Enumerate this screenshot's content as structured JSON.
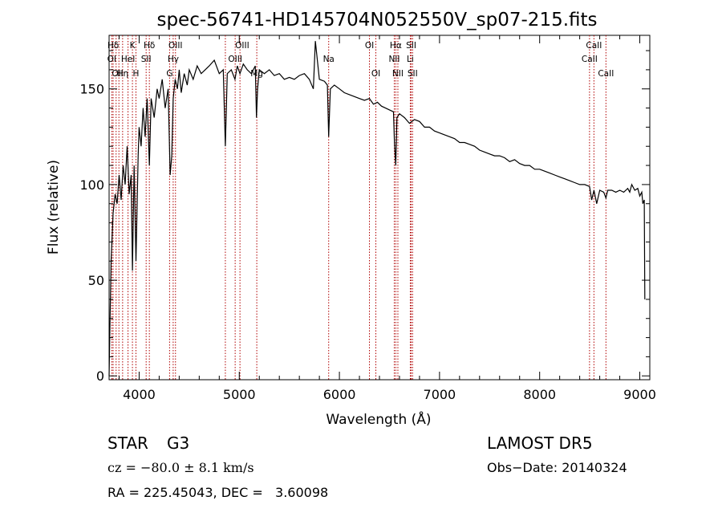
{
  "chart_data": {
    "type": "line",
    "title": "spec-56741-HD145704N052550V_sp07-215.fits",
    "xlabel": "Wavelength (Å)",
    "ylabel": "Flux (relative)",
    "xlim": [
      3700,
      9100
    ],
    "ylim": [
      -2,
      178
    ],
    "xticks": [
      4000,
      5000,
      6000,
      7000,
      8000,
      9000
    ],
    "yticks": [
      0,
      50,
      100,
      150
    ],
    "grid": false,
    "series": [
      {
        "x": [
          3700,
          3710,
          3720,
          3740,
          3760,
          3780,
          3800,
          3820,
          3840,
          3860,
          3880,
          3900,
          3920,
          3933,
          3950,
          3968,
          3990,
          4000,
          4020,
          4040,
          4060,
          4080,
          4102,
          4120,
          4150,
          4180,
          4200,
          4230,
          4260,
          4290,
          4310,
          4326,
          4340,
          4360,
          4383,
          4400,
          4420,
          4450,
          4480,
          4500,
          4540,
          4580,
          4620,
          4660,
          4700,
          4750,
          4800,
          4840,
          4861,
          4880,
          4920,
          4957,
          4980,
          5007,
          5040,
          5080,
          5120,
          5160,
          5172,
          5183,
          5200,
          5250,
          5300,
          5350,
          5400,
          5450,
          5500,
          5550,
          5600,
          5650,
          5700,
          5740,
          5760,
          5800,
          5850,
          5880,
          5893,
          5910,
          5950,
          6000,
          6050,
          6100,
          6150,
          6200,
          6250,
          6300,
          6340,
          6380,
          6420,
          6460,
          6500,
          6540,
          6550,
          6563,
          6575,
          6600,
          6650,
          6700,
          6750,
          6800,
          6850,
          6900,
          6950,
          7000,
          7050,
          7100,
          7150,
          7200,
          7250,
          7300,
          7350,
          7400,
          7450,
          7500,
          7550,
          7600,
          7650,
          7700,
          7750,
          7800,
          7850,
          7900,
          7950,
          8000,
          8050,
          8100,
          8150,
          8200,
          8250,
          8300,
          8350,
          8400,
          8450,
          8498,
          8520,
          8542,
          8570,
          8600,
          8640,
          8662,
          8680,
          8720,
          8760,
          8800,
          8840,
          8880,
          8900,
          8920,
          8950,
          8980,
          9000,
          9020,
          9030,
          9045,
          9050
        ],
        "y": [
          0,
          30,
          60,
          85,
          95,
          90,
          105,
          92,
          110,
          100,
          120,
          95,
          105,
          55,
          110,
          60,
          115,
          130,
          120,
          140,
          125,
          145,
          110,
          145,
          135,
          150,
          145,
          155,
          140,
          150,
          105,
          115,
          145,
          155,
          150,
          160,
          148,
          158,
          152,
          160,
          155,
          162,
          158,
          160,
          162,
          165,
          158,
          160,
          120,
          158,
          160,
          155,
          162,
          158,
          163,
          160,
          158,
          162,
          135,
          150,
          160,
          158,
          160,
          157,
          158,
          155,
          156,
          155,
          157,
          158,
          155,
          150,
          175,
          155,
          154,
          152,
          125,
          150,
          152,
          150,
          148,
          147,
          146,
          145,
          144,
          145,
          142,
          143,
          141,
          140,
          139,
          138,
          122,
          110,
          135,
          137,
          135,
          132,
          134,
          133,
          130,
          130,
          128,
          127,
          126,
          125,
          124,
          122,
          122,
          121,
          120,
          118,
          117,
          116,
          115,
          115,
          114,
          112,
          113,
          111,
          110,
          110,
          108,
          108,
          107,
          106,
          105,
          104,
          103,
          102,
          101,
          100,
          100,
          99,
          92,
          97,
          90,
          97,
          96,
          93,
          97,
          97,
          96,
          97,
          96,
          98,
          96,
          100,
          97,
          98,
          94,
          96,
          90,
          92,
          40
        ]
      }
    ],
    "lines": [
      {
        "label": "Hδ",
        "x": 3740,
        "row": 0,
        "anchor": "middle"
      },
      {
        "label": "K",
        "x": 3933,
        "row": 0,
        "anchor": "middle"
      },
      {
        "label": "Hδ",
        "x": 4102,
        "row": 0,
        "anchor": "middle"
      },
      {
        "label": "OIII",
        "x": 4363,
        "row": 0,
        "anchor": "middle"
      },
      {
        "label": "OIII",
        "x": 4959,
        "row": 0,
        "anchor": "start"
      },
      {
        "label": "OI",
        "x": 6300,
        "row": 0,
        "anchor": "middle"
      },
      {
        "label": "Hα",
        "x": 6563,
        "row": 0,
        "anchor": "middle"
      },
      {
        "label": "SII",
        "x": 6717,
        "row": 0,
        "anchor": "middle"
      },
      {
        "label": "CaII",
        "x": 8542,
        "row": 0,
        "anchor": "middle"
      },
      {
        "label": "OI",
        "x": 3727,
        "row": 1,
        "anchor": "middle"
      },
      {
        "label": "HeI",
        "x": 3889,
        "row": 1,
        "anchor": "middle"
      },
      {
        "label": "SII",
        "x": 4070,
        "row": 1,
        "anchor": "middle"
      },
      {
        "label": "Hγ",
        "x": 4340,
        "row": 1,
        "anchor": "middle"
      },
      {
        "label": "OIII",
        "x": 4959,
        "row": 1,
        "anchor": "middle"
      },
      {
        "label": "Na",
        "x": 5893,
        "row": 1,
        "anchor": "middle"
      },
      {
        "label": "NII",
        "x": 6548,
        "row": 1,
        "anchor": "middle"
      },
      {
        "label": "Li",
        "x": 6708,
        "row": 1,
        "anchor": "middle"
      },
      {
        "label": "CaII",
        "x": 8498,
        "row": 1,
        "anchor": "middle"
      },
      {
        "label": "OII",
        "x": 3727,
        "row": 2,
        "anchor": "start"
      },
      {
        "label": "Hη",
        "x": 3835,
        "row": 2,
        "anchor": "middle"
      },
      {
        "label": "H",
        "x": 3968,
        "row": 2,
        "anchor": "middle"
      },
      {
        "label": "G",
        "x": 4304,
        "row": 2,
        "anchor": "middle"
      },
      {
        "label": "Mg",
        "x": 5175,
        "row": 2,
        "anchor": "middle"
      },
      {
        "label": "OI",
        "x": 6364,
        "row": 2,
        "anchor": "middle"
      },
      {
        "label": "NII",
        "x": 6584,
        "row": 2,
        "anchor": "middle"
      },
      {
        "label": "SII",
        "x": 6731,
        "row": 2,
        "anchor": "middle"
      },
      {
        "label": "CaII",
        "x": 8662,
        "row": 2,
        "anchor": "middle"
      }
    ],
    "line_positions": [
      3727,
      3740,
      3770,
      3798,
      3835,
      3889,
      3933,
      3968,
      4070,
      4102,
      4304,
      4340,
      4363,
      4861,
      4959,
      5007,
      5175,
      5893,
      6300,
      6364,
      6548,
      6563,
      6584,
      6708,
      6717,
      6731,
      8498,
      8542,
      8662
    ],
    "marker_color": "#b00000"
  },
  "info": {
    "class_text": "STAR",
    "subclass_text": "G3",
    "cz_text": "cz = −80.0 ± 8.1 km/s",
    "radec_text": "RA = 225.45043, DEC =   3.60098",
    "survey_text": "LAMOST DR5",
    "obsdate_text": "Obs−Date: 20140324"
  }
}
